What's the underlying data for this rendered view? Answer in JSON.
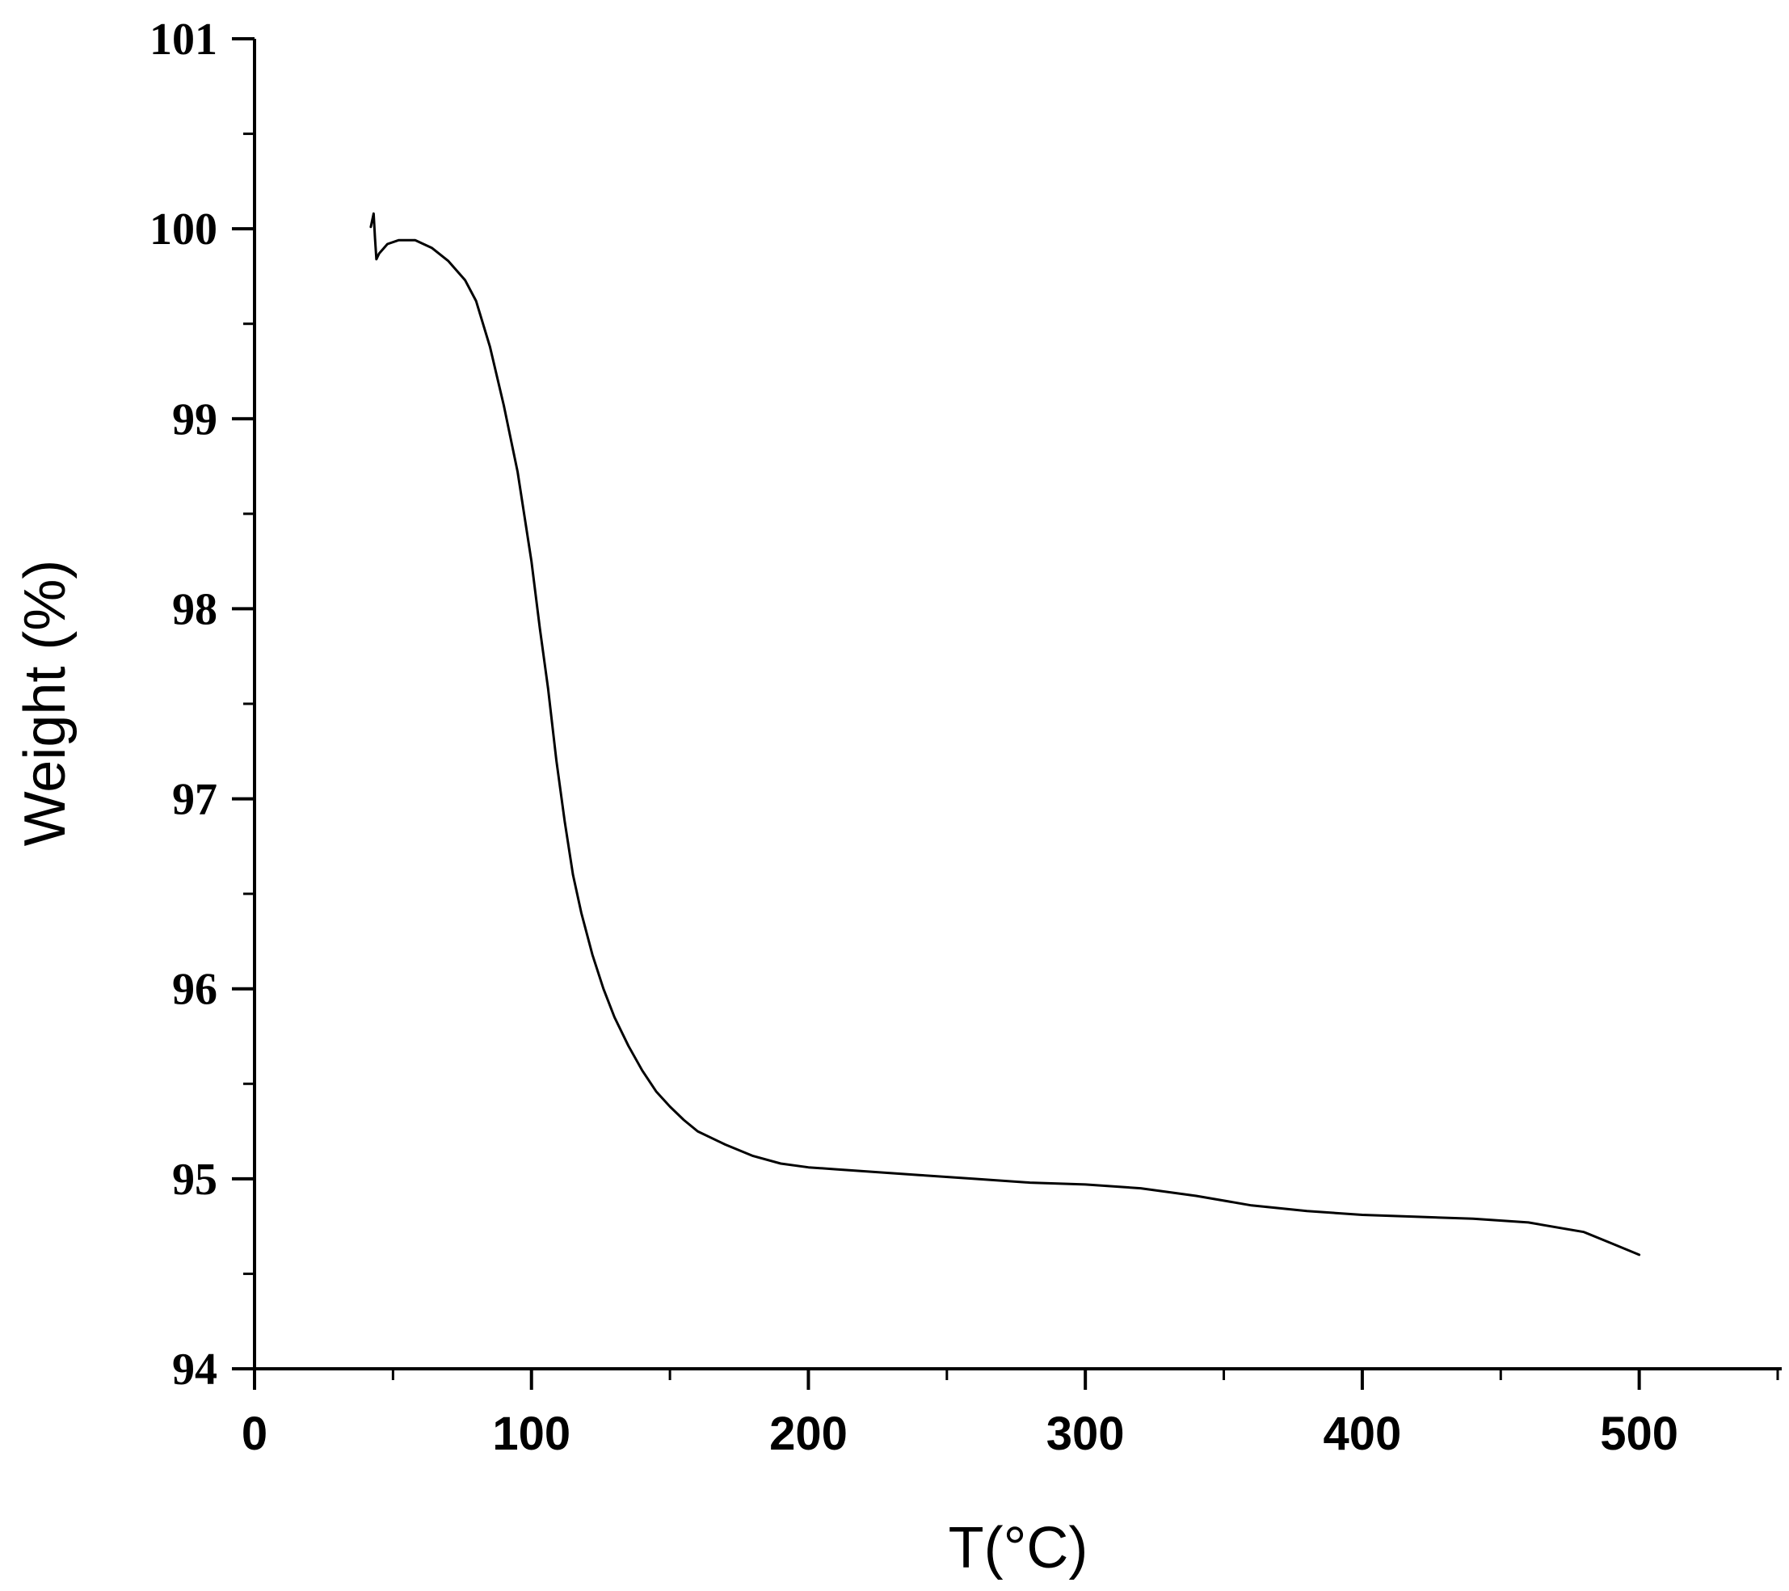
{
  "chart_data": {
    "type": "line",
    "title": "",
    "xlabel": "T(°C)",
    "ylabel": "Weight (%)",
    "xlim": [
      0,
      550
    ],
    "ylim": [
      94,
      101
    ],
    "x_ticks": [
      0,
      100,
      200,
      300,
      400,
      500
    ],
    "y_ticks": [
      94,
      95,
      96,
      97,
      98,
      99,
      100,
      101
    ],
    "x_minor_step": 50,
    "y_minor_step": 0.5,
    "grid": false,
    "legend": "none",
    "series": [
      {
        "color": "#000000",
        "x": [
          42,
          43,
          43.5,
          44,
          45,
          48,
          52,
          58,
          64,
          70,
          76,
          80,
          85,
          90,
          95,
          100,
          103,
          106,
          109,
          112,
          115,
          118,
          122,
          126,
          130,
          135,
          140,
          145,
          150,
          155,
          160,
          170,
          180,
          190,
          200,
          210,
          220,
          240,
          260,
          280,
          300,
          320,
          340,
          360,
          380,
          400,
          420,
          440,
          460,
          480,
          490,
          500
        ],
        "y": [
          100.01,
          100.08,
          99.95,
          99.84,
          99.87,
          99.92,
          99.94,
          99.94,
          99.9,
          99.83,
          99.73,
          99.62,
          99.38,
          99.07,
          98.72,
          98.25,
          97.9,
          97.58,
          97.2,
          96.88,
          96.6,
          96.4,
          96.18,
          96.0,
          95.85,
          95.7,
          95.57,
          95.46,
          95.38,
          95.31,
          95.25,
          95.18,
          95.12,
          95.08,
          95.06,
          95.05,
          95.04,
          95.02,
          95.0,
          94.98,
          94.97,
          94.95,
          94.91,
          94.86,
          94.83,
          94.81,
          94.8,
          94.79,
          94.77,
          94.72,
          94.66,
          94.6
        ]
      }
    ]
  }
}
